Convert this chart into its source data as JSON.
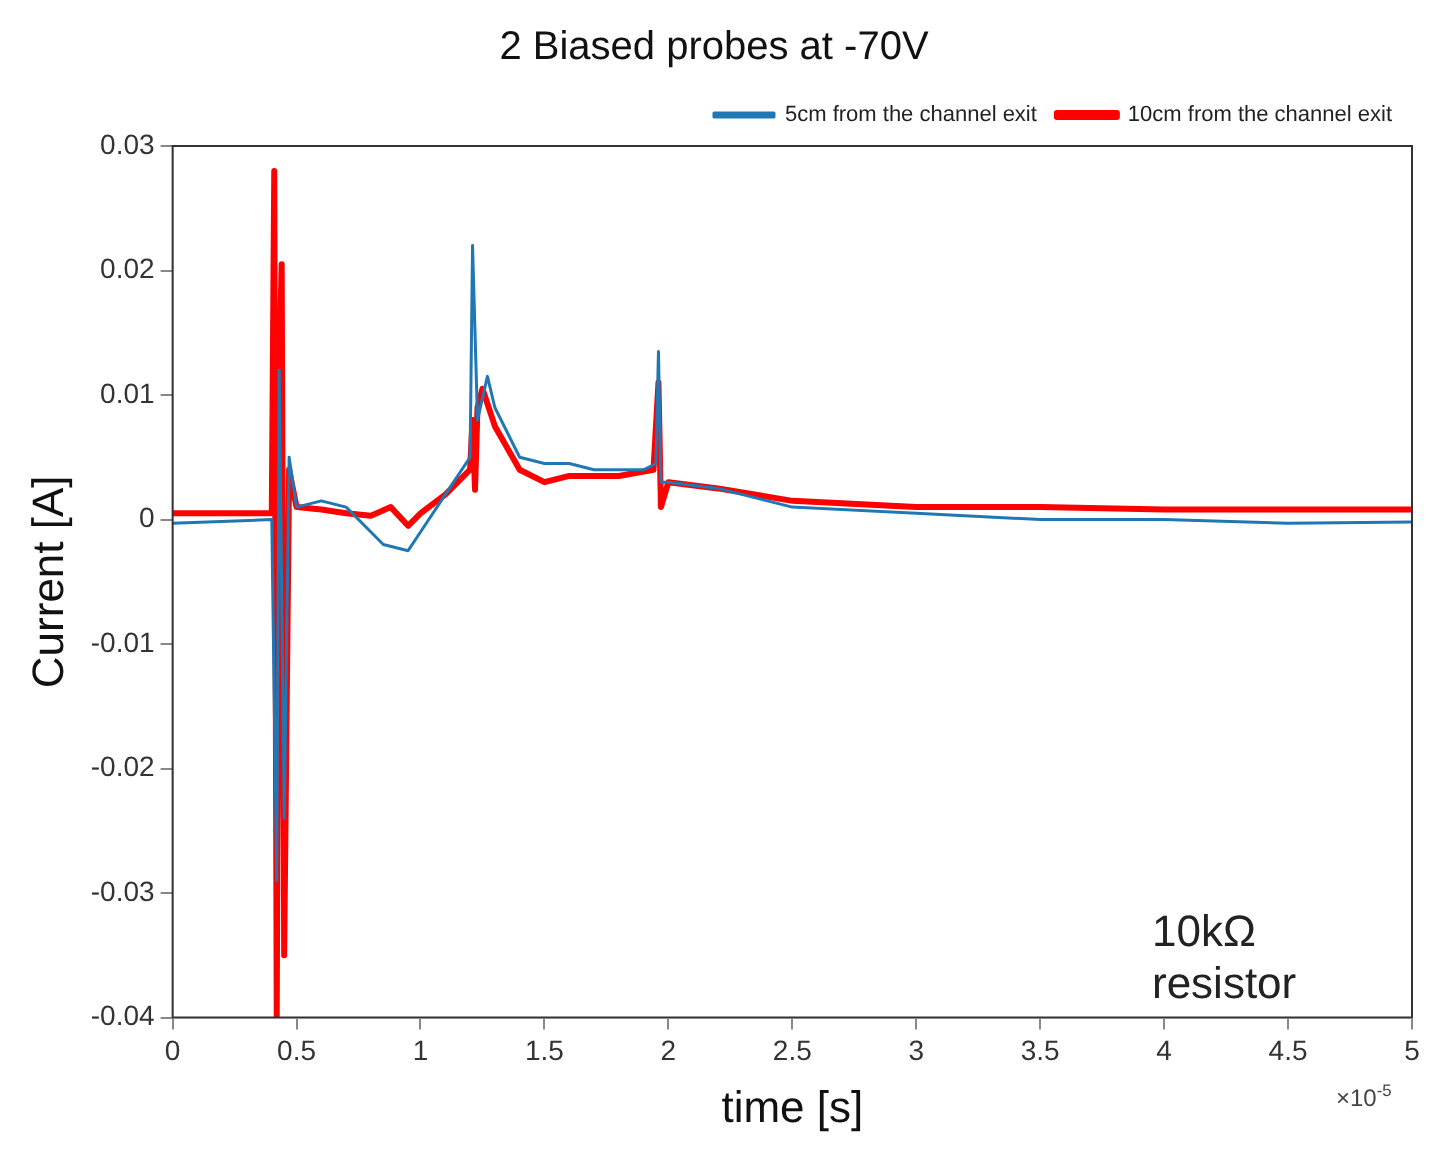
{
  "chart_data": {
    "type": "line",
    "title": "2 Biased probes at -70V",
    "xlabel": "time [s]",
    "ylabel": "Current [A]",
    "xlim": [
      0,
      5
    ],
    "xticks": [
      0,
      0.5,
      1,
      1.5,
      2,
      2.5,
      3,
      3.5,
      4,
      4.5,
      5
    ],
    "ylim": [
      -0.04,
      0.03
    ],
    "yticks": [
      -0.04,
      -0.03,
      -0.02,
      -0.01,
      0,
      0.01,
      0.02,
      0.03
    ],
    "grid": false,
    "legend": "top right",
    "marker": "none",
    "line_style": "solid",
    "annotations": [
      "10kΩ resistor",
      "×10$^{-5}$"
    ],
    "series": [
      {
        "name": "5cm from the channel exit",
        "color": "#1f77b4",
        "x": [
          0,
          0.4,
          0.42,
          0.43,
          0.45,
          0.47,
          0.5,
          0.6,
          0.7,
          0.8,
          0.85,
          0.95,
          1.0,
          1.1,
          1.2,
          1.21,
          1.23,
          1.27,
          1.3,
          1.4,
          1.5,
          1.6,
          1.7,
          1.9,
          1.95,
          1.96,
          1.97,
          2.0,
          2.2,
          2.5,
          3.0,
          3.5,
          4.0,
          4.5,
          5.0
        ],
        "values": [
          -0.0003,
          0,
          -0.029,
          0.012,
          -0.024,
          0.005,
          0.001,
          0.0015,
          0.001,
          -0.001,
          -0.002,
          -0.0025,
          -0.001,
          0.002,
          0.005,
          0.022,
          0.008,
          0.0115,
          0.009,
          0.005,
          0.0045,
          0.0045,
          0.004,
          0.004,
          0.0045,
          0.0135,
          0.003,
          0.003,
          0.0025,
          0.001,
          0.0005,
          0,
          0,
          -0.0003,
          -0.0002
        ]
      },
      {
        "name": "10cm from the channel exit",
        "color": "#ff0000",
        "x": [
          0,
          0.4,
          0.41,
          0.42,
          0.43,
          0.44,
          0.45,
          0.47,
          0.5,
          0.6,
          0.7,
          0.8,
          0.88,
          0.95,
          1.0,
          1.1,
          1.2,
          1.21,
          1.22,
          1.23,
          1.25,
          1.3,
          1.4,
          1.5,
          1.6,
          1.8,
          1.94,
          1.96,
          1.97,
          2.0,
          2.2,
          2.5,
          3.0,
          3.5,
          4.0,
          4.5,
          5.0
        ],
        "values": [
          0.0005,
          0.0005,
          0.028,
          -0.04,
          0.012,
          0.0205,
          -0.035,
          0.004,
          0.001,
          0.0008,
          0.0005,
          0.0003,
          0.001,
          -0.0005,
          0.0005,
          0.002,
          0.004,
          0.008,
          0.0024,
          0.009,
          0.0105,
          0.0075,
          0.004,
          0.003,
          0.0035,
          0.0035,
          0.004,
          0.011,
          0.001,
          0.003,
          0.0025,
          0.0015,
          0.001,
          0.001,
          0.0008,
          0.0008,
          0.0008
        ]
      }
    ]
  }
}
